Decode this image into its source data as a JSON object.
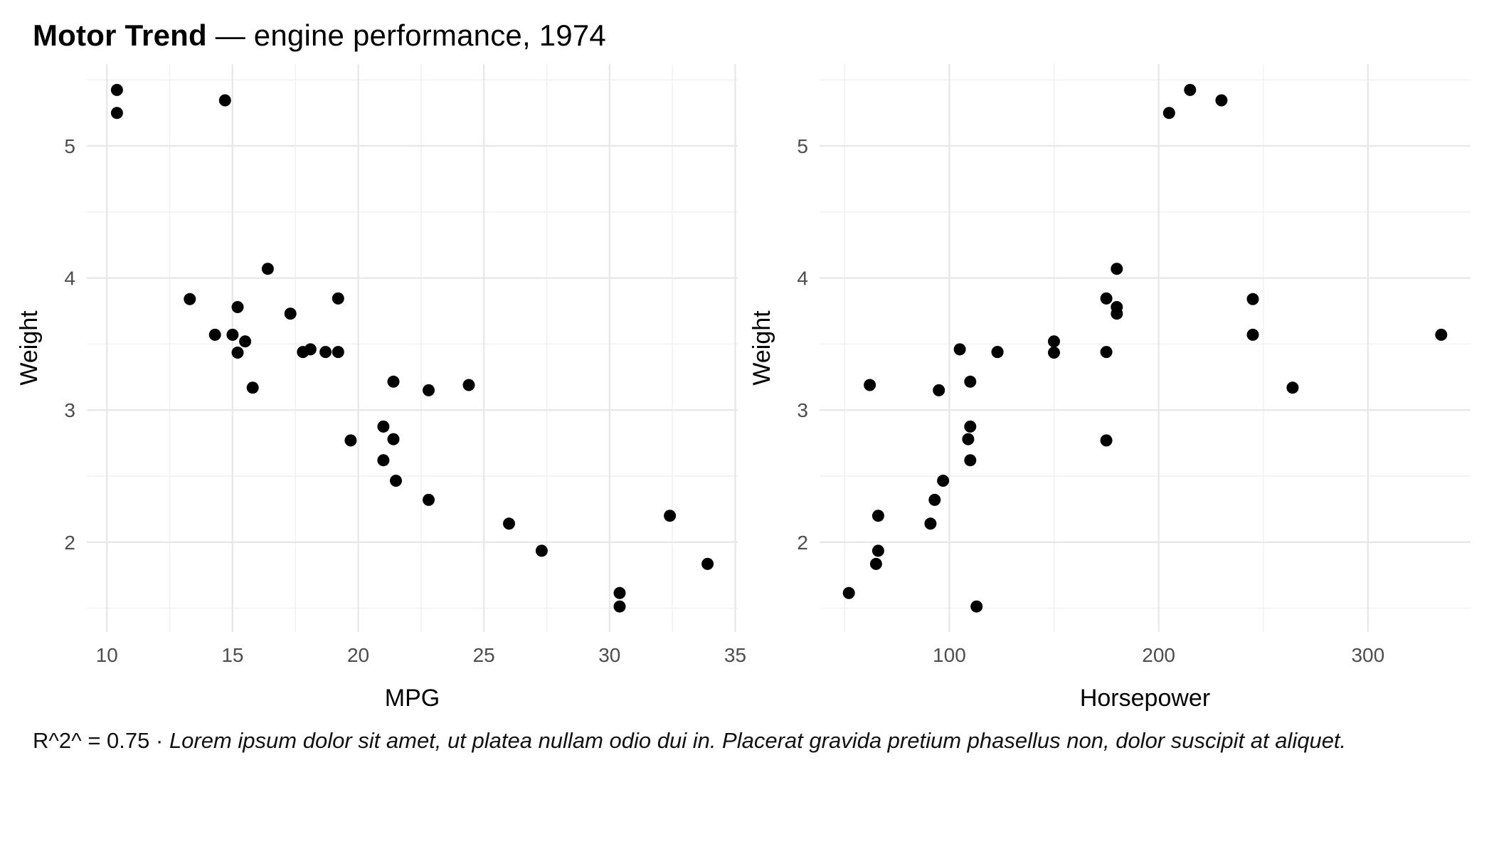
{
  "title": {
    "bold": "Motor Trend",
    "rest": " — engine performance, 1974"
  },
  "caption": {
    "prefix": "R^2^ = 0.75 · ",
    "italic_text": "Lorem ipsum dolor sit amet, ut platea nullam odio dui in. Placerat gravida pretium phasellus non, dolor suscipit at aliquet."
  },
  "colors": {
    "background": "#ffffff",
    "point": "#000000",
    "grid_major": "#e8e8e8",
    "grid_minor": "#f1f1f1",
    "tick_label": "#4d4d4d",
    "axis_title": "#000000"
  },
  "chart_data": [
    {
      "type": "scatter",
      "name": "mpg-vs-weight",
      "xlabel": "MPG",
      "ylabel": "Weight",
      "xlim": [
        9.2,
        35.1
      ],
      "ylim": [
        1.32,
        5.62
      ],
      "xticks": [
        10,
        15,
        20,
        25,
        30,
        35
      ],
      "yticks": [
        2,
        3,
        4,
        5
      ],
      "x_minor": [
        12.5,
        17.5,
        22.5,
        27.5,
        32.5
      ],
      "y_minor": [
        1.5,
        2.5,
        3.5,
        4.5,
        5.5
      ],
      "x": [
        21.0,
        21.0,
        22.8,
        21.4,
        18.7,
        18.1,
        14.3,
        24.4,
        22.8,
        19.2,
        17.8,
        16.4,
        17.3,
        15.2,
        10.4,
        10.4,
        14.7,
        32.4,
        30.4,
        33.9,
        21.5,
        15.5,
        15.2,
        13.3,
        19.2,
        27.3,
        26.0,
        30.4,
        15.8,
        19.7,
        15.0,
        21.4
      ],
      "y": [
        2.62,
        2.875,
        2.32,
        3.215,
        3.44,
        3.46,
        3.57,
        3.19,
        3.15,
        3.44,
        3.44,
        4.07,
        3.73,
        3.78,
        5.25,
        5.424,
        5.345,
        2.2,
        1.615,
        1.835,
        2.465,
        3.52,
        3.435,
        3.84,
        3.845,
        1.935,
        2.14,
        1.513,
        3.17,
        2.77,
        3.57,
        2.78
      ]
    },
    {
      "type": "scatter",
      "name": "horsepower-vs-weight",
      "xlabel": "Horsepower",
      "ylabel": "Weight",
      "xlim": [
        38,
        349
      ],
      "ylim": [
        1.32,
        5.62
      ],
      "xticks": [
        100,
        200,
        300
      ],
      "yticks": [
        2,
        3,
        4,
        5
      ],
      "x_minor": [
        50,
        150,
        250
      ],
      "y_minor": [
        1.5,
        2.5,
        3.5,
        4.5,
        5.5
      ],
      "x": [
        110,
        110,
        93,
        110,
        175,
        105,
        245,
        62,
        95,
        123,
        123,
        180,
        180,
        180,
        205,
        215,
        230,
        66,
        52,
        65,
        97,
        150,
        150,
        245,
        175,
        66,
        91,
        113,
        264,
        175,
        335,
        109
      ],
      "y": [
        2.62,
        2.875,
        2.32,
        3.215,
        3.44,
        3.46,
        3.57,
        3.19,
        3.15,
        3.44,
        3.44,
        4.07,
        3.73,
        3.78,
        5.25,
        5.424,
        5.345,
        2.2,
        1.615,
        1.835,
        2.465,
        3.52,
        3.435,
        3.84,
        3.845,
        1.935,
        2.14,
        1.513,
        3.17,
        2.77,
        3.57,
        2.78
      ]
    }
  ]
}
